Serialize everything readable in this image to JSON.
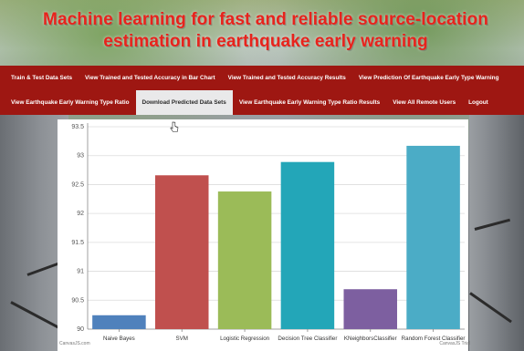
{
  "page": {
    "title": "Machine learning for fast and reliable source-location estimation in earthquake early warning"
  },
  "nav": {
    "row1": [
      {
        "label": "Train & Test Data Sets"
      },
      {
        "label": "View Trained and Tested Accuracy in Bar Chart"
      },
      {
        "label": "View Trained and Tested Accuracy Results"
      },
      {
        "label": "View Prediction Of Earthquake Early Type Warning"
      }
    ],
    "row2": [
      {
        "label": "View Earthquake Early Warning Type Ratio"
      },
      {
        "label": "Download Predicted Data Sets",
        "active": true
      },
      {
        "label": "View Earthquake Early Warning Type Ratio Results"
      },
      {
        "label": "View All Remote Users"
      },
      {
        "label": "Logout"
      }
    ]
  },
  "colors": {
    "title": "#e8231c",
    "nav_bg": "#9e1712",
    "nav_active_bg": "#e9e9ea"
  },
  "chart_data": {
    "type": "bar",
    "categories": [
      "Naive Bayes",
      "SVM",
      "Logistic Regression",
      "Decision Tree Classifier",
      "KNeighborsClassifier",
      "Random Forest Classifier"
    ],
    "values": [
      90.24,
      92.66,
      92.38,
      92.89,
      90.69,
      93.17
    ],
    "colors": [
      "#4f81bc",
      "#c0504e",
      "#9bbb58",
      "#23a6b8",
      "#7d5fa0",
      "#4bacc6"
    ],
    "ylim": [
      90,
      93.5
    ],
    "yticks": [
      "90",
      "90.5",
      "91",
      "91.5",
      "92",
      "92.5",
      "93",
      "93.5"
    ],
    "grid": true,
    "credit_left": "CanvasJS.com",
    "credit_right": "CanvasJS Trial"
  }
}
